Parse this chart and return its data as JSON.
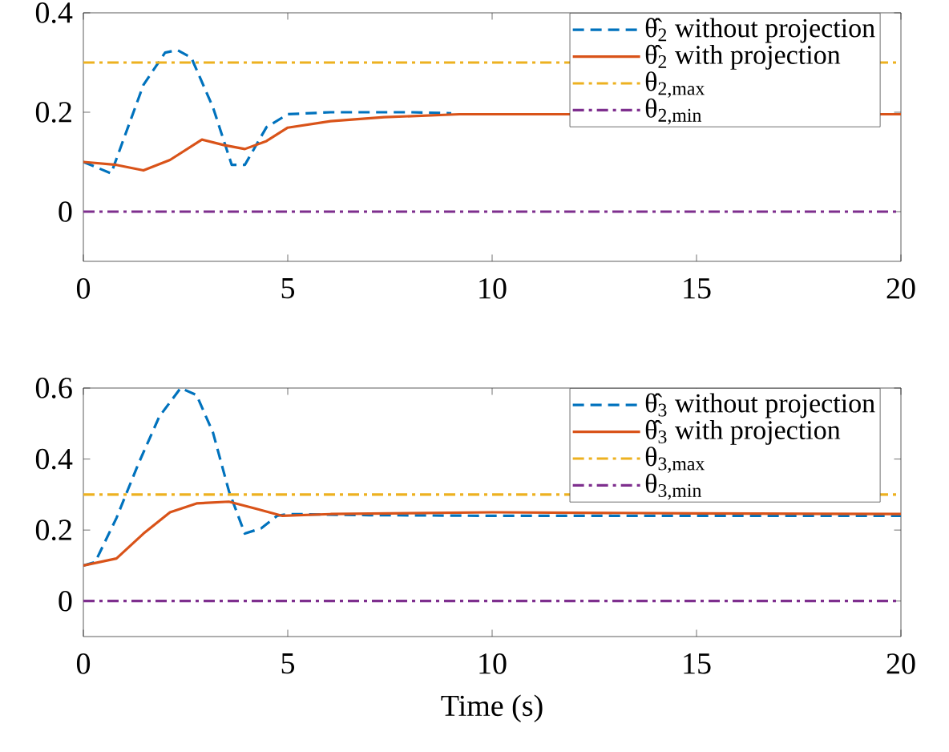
{
  "chart_data": [
    {
      "type": "line",
      "xlim": [
        0,
        20
      ],
      "xticks": [
        0,
        5,
        10,
        15,
        20
      ],
      "ylim": [
        -0.1,
        0.4
      ],
      "yticks": [
        0,
        0.2,
        0.4
      ],
      "legend": "top right",
      "series": [
        {
          "name": "θ̂$_{2}$ without projection",
          "color": "#0072bd",
          "line_style": "dashed",
          "x": [
            0,
            0.68,
            1.47,
            2.0,
            2.3,
            2.64,
            3.17,
            3.63,
            3.95,
            4.48,
            5.0,
            6.05,
            8,
            9
          ],
          "values": [
            0.1,
            0.077,
            0.255,
            0.32,
            0.325,
            0.31,
            0.21,
            0.094,
            0.094,
            0.17,
            0.196,
            0.2,
            0.2,
            0.198
          ]
        },
        {
          "name": "θ̂$_{2}$ with projection",
          "color": "#d95319",
          "line_style": "solid",
          "x": [
            0,
            0.81,
            1.47,
            2.12,
            2.9,
            3.43,
            3.95,
            4.48,
            5.0,
            6.05,
            7.36,
            9.2,
            20
          ],
          "values": [
            0.1,
            0.094,
            0.083,
            0.104,
            0.145,
            0.134,
            0.126,
            0.142,
            0.169,
            0.182,
            0.19,
            0.196,
            0.196
          ]
        },
        {
          "name": "θ$_{2,max}$",
          "color": "#edb120",
          "line_style": "dashdot",
          "x": [
            0,
            20
          ],
          "values": [
            0.3,
            0.3
          ]
        },
        {
          "name": "θ$_{2,min}$",
          "color": "#7e2f8e",
          "line_style": "dashdot",
          "x": [
            0,
            20
          ],
          "values": [
            0,
            0
          ]
        }
      ]
    },
    {
      "type": "line",
      "xlabel": "Time (s)",
      "xlim": [
        0,
        20
      ],
      "xticks": [
        0,
        5,
        10,
        15,
        20
      ],
      "ylim": [
        -0.1,
        0.6
      ],
      "yticks": [
        0,
        0.2,
        0.4,
        0.6
      ],
      "legend": "top right",
      "series": [
        {
          "name": "θ̂$_{3}$ without projection",
          "color": "#0072bd",
          "line_style": "dashed",
          "x": [
            0,
            0.29,
            0.81,
            1.34,
            1.86,
            2.38,
            2.77,
            3.17,
            3.56,
            3.95,
            4.35,
            4.74,
            5.0,
            7,
            10,
            15,
            20
          ],
          "values": [
            0.1,
            0.11,
            0.234,
            0.385,
            0.52,
            0.6,
            0.58,
            0.475,
            0.31,
            0.19,
            0.205,
            0.24,
            0.245,
            0.242,
            0.24,
            0.24,
            0.24
          ]
        },
        {
          "name": "θ̂$_{3}$ with projection",
          "color": "#d95319",
          "line_style": "solid",
          "x": [
            0,
            0.81,
            1.47,
            2.12,
            2.77,
            3.56,
            4.22,
            4.87,
            6.05,
            10,
            15,
            20
          ],
          "values": [
            0.1,
            0.12,
            0.19,
            0.25,
            0.275,
            0.28,
            0.26,
            0.24,
            0.245,
            0.25,
            0.247,
            0.245
          ]
        },
        {
          "name": "θ$_{3,max}$",
          "color": "#edb120",
          "line_style": "dashdot",
          "x": [
            0,
            20
          ],
          "values": [
            0.3,
            0.3
          ]
        },
        {
          "name": "θ$_{3,min}$",
          "color": "#7e2f8e",
          "line_style": "dashdot",
          "x": [
            0,
            20
          ],
          "values": [
            0,
            0
          ]
        }
      ]
    }
  ]
}
